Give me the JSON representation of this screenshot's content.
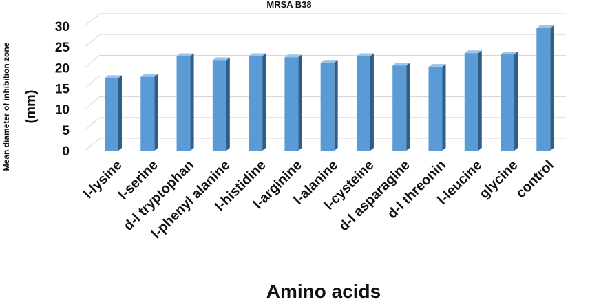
{
  "chart_data": {
    "type": "bar",
    "title": "MRSA B38",
    "xlabel": "Amino acids",
    "ylabel_line1": "Mean diameter of inhibition zone",
    "ylabel_line2": "(mm)",
    "ylim": [
      0,
      30
    ],
    "yticks": [
      "0",
      "5",
      "10",
      "15",
      "20",
      "25",
      "30"
    ],
    "grid": true,
    "legend": "none",
    "bar_color": "#5b9bd5",
    "categories": [
      "l-lysine",
      "l-serine",
      "d-l tryptophan",
      "l-phenyl alanine",
      "l-histidine",
      "l-arginine",
      "l-alanine",
      "l-cysteine",
      "d-l asparagine",
      "d-l threonin",
      "l-leucine",
      "glycine",
      "control"
    ],
    "values": [
      17.5,
      17.8,
      22.8,
      21.8,
      22.8,
      22.5,
      21.2,
      22.8,
      20.5,
      20.2,
      23.5,
      23.2,
      29.5
    ]
  }
}
